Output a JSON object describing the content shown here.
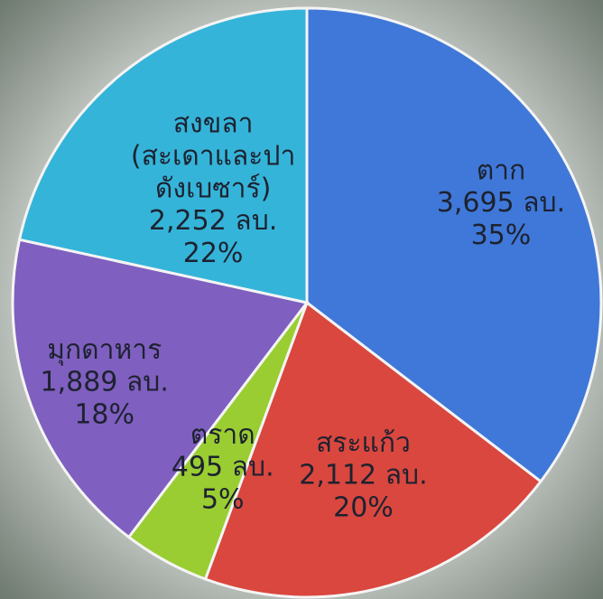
{
  "chart_data": {
    "type": "pie",
    "categories": [
      "ตาก",
      "สระแก้ว",
      "ตราด",
      "มุกดาหาร",
      "สงขลา\n(สะเดาและปา\nดังเบซาร์)"
    ],
    "values": [
      3695,
      2112,
      495,
      1889,
      2252
    ],
    "value_labels": [
      "3,695 ลบ.",
      "2,112 ลบ.",
      "495 ลบ.",
      "1,889 ลบ.",
      "2,252 ลบ."
    ],
    "percents": [
      35,
      20,
      5,
      18,
      22
    ],
    "percent_labels": [
      "35%",
      "20%",
      "5%",
      "18%",
      "22%"
    ],
    "colors": [
      "#3f78d8",
      "#d9473f",
      "#9acd32",
      "#7f5fbf",
      "#35b4d9"
    ]
  }
}
